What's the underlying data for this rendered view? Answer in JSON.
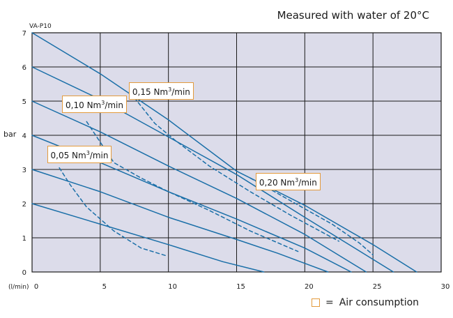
{
  "title": "Measured with water of 20°C",
  "legend": {
    "symbol": "□",
    "separator": "=",
    "label": "Air consumption"
  },
  "chart_data": {
    "type": "line",
    "model_label": "VA-P10",
    "xlabel": "(l/min)",
    "ylabel": "bar",
    "xlim": [
      0,
      30
    ],
    "ylim": [
      0,
      7
    ],
    "xticks": [
      0,
      5,
      10,
      15,
      20,
      25,
      30
    ],
    "yticks": [
      0,
      1,
      2,
      3,
      4,
      5,
      6,
      7
    ],
    "grid": true,
    "background": "#dcdcea",
    "line_color": "#1a6fa8",
    "accent_color": "#e39a3b",
    "series": [
      {
        "kind": "solid",
        "x": [
          0,
          5,
          10,
          14,
          17
        ],
        "y": [
          2,
          1.4,
          0.8,
          0.3,
          0
        ]
      },
      {
        "kind": "solid",
        "x": [
          0,
          5,
          10,
          15,
          18,
          21.7
        ],
        "y": [
          3,
          2.35,
          1.6,
          0.95,
          0.55,
          0
        ]
      },
      {
        "kind": "solid",
        "x": [
          0,
          5,
          10,
          15,
          20,
          23.4
        ],
        "y": [
          4,
          3.2,
          2.35,
          1.55,
          0.7,
          0
        ]
      },
      {
        "kind": "solid",
        "x": [
          0,
          5,
          10,
          15,
          20,
          24.5
        ],
        "y": [
          5,
          4.1,
          3.1,
          2.15,
          1.1,
          0
        ]
      },
      {
        "kind": "solid",
        "x": [
          0,
          5,
          10,
          15,
          20,
          26.5
        ],
        "y": [
          6,
          5.05,
          3.95,
          2.85,
          1.6,
          0
        ]
      },
      {
        "kind": "solid",
        "x": [
          0,
          5,
          10,
          15,
          20,
          25,
          28.2
        ],
        "y": [
          7,
          5.8,
          4.45,
          2.95,
          1.95,
          0.8,
          0
        ]
      },
      {
        "kind": "dashed",
        "name": "0,05 Nm³/min",
        "x": [
          2,
          2.8,
          4,
          6,
          8,
          9.8
        ],
        "y": [
          3.05,
          2.55,
          1.9,
          1.2,
          0.7,
          0.48
        ]
      },
      {
        "kind": "dashed",
        "name": "0,10 Nm³/min",
        "x": [
          4,
          5,
          6,
          8,
          10,
          13,
          16,
          19.5
        ],
        "y": [
          4.4,
          3.8,
          3.2,
          2.75,
          2.35,
          1.8,
          1.2,
          0.6
        ]
      },
      {
        "kind": "dashed",
        "name": "0,15 Nm³/min",
        "x": [
          7.5,
          9,
          10.5,
          13,
          16,
          19,
          22.5
        ],
        "y": [
          5.1,
          4.35,
          3.85,
          3.1,
          2.35,
          1.65,
          0.9
        ]
      },
      {
        "kind": "dashed",
        "name": "0,20 Nm³/min",
        "x": [
          16,
          18,
          20,
          22,
          24,
          25
        ],
        "y": [
          2.75,
          2.3,
          1.85,
          1.4,
          0.85,
          0.5
        ]
      }
    ],
    "annotations": [
      {
        "prefix": "0,05 Nm",
        "sup": "3",
        "suffix": "/min",
        "x": 1.1,
        "y": 3.5
      },
      {
        "prefix": "0,10 Nm",
        "sup": "3",
        "suffix": "/min",
        "x": 2.2,
        "y": 4.95
      },
      {
        "prefix": "0,15 Nm",
        "sup": "3",
        "suffix": "/min",
        "x": 7.1,
        "y": 5.35
      },
      {
        "prefix": "0,20 Nm",
        "sup": "3",
        "suffix": "/min",
        "x": 16.4,
        "y": 2.7
      }
    ]
  }
}
